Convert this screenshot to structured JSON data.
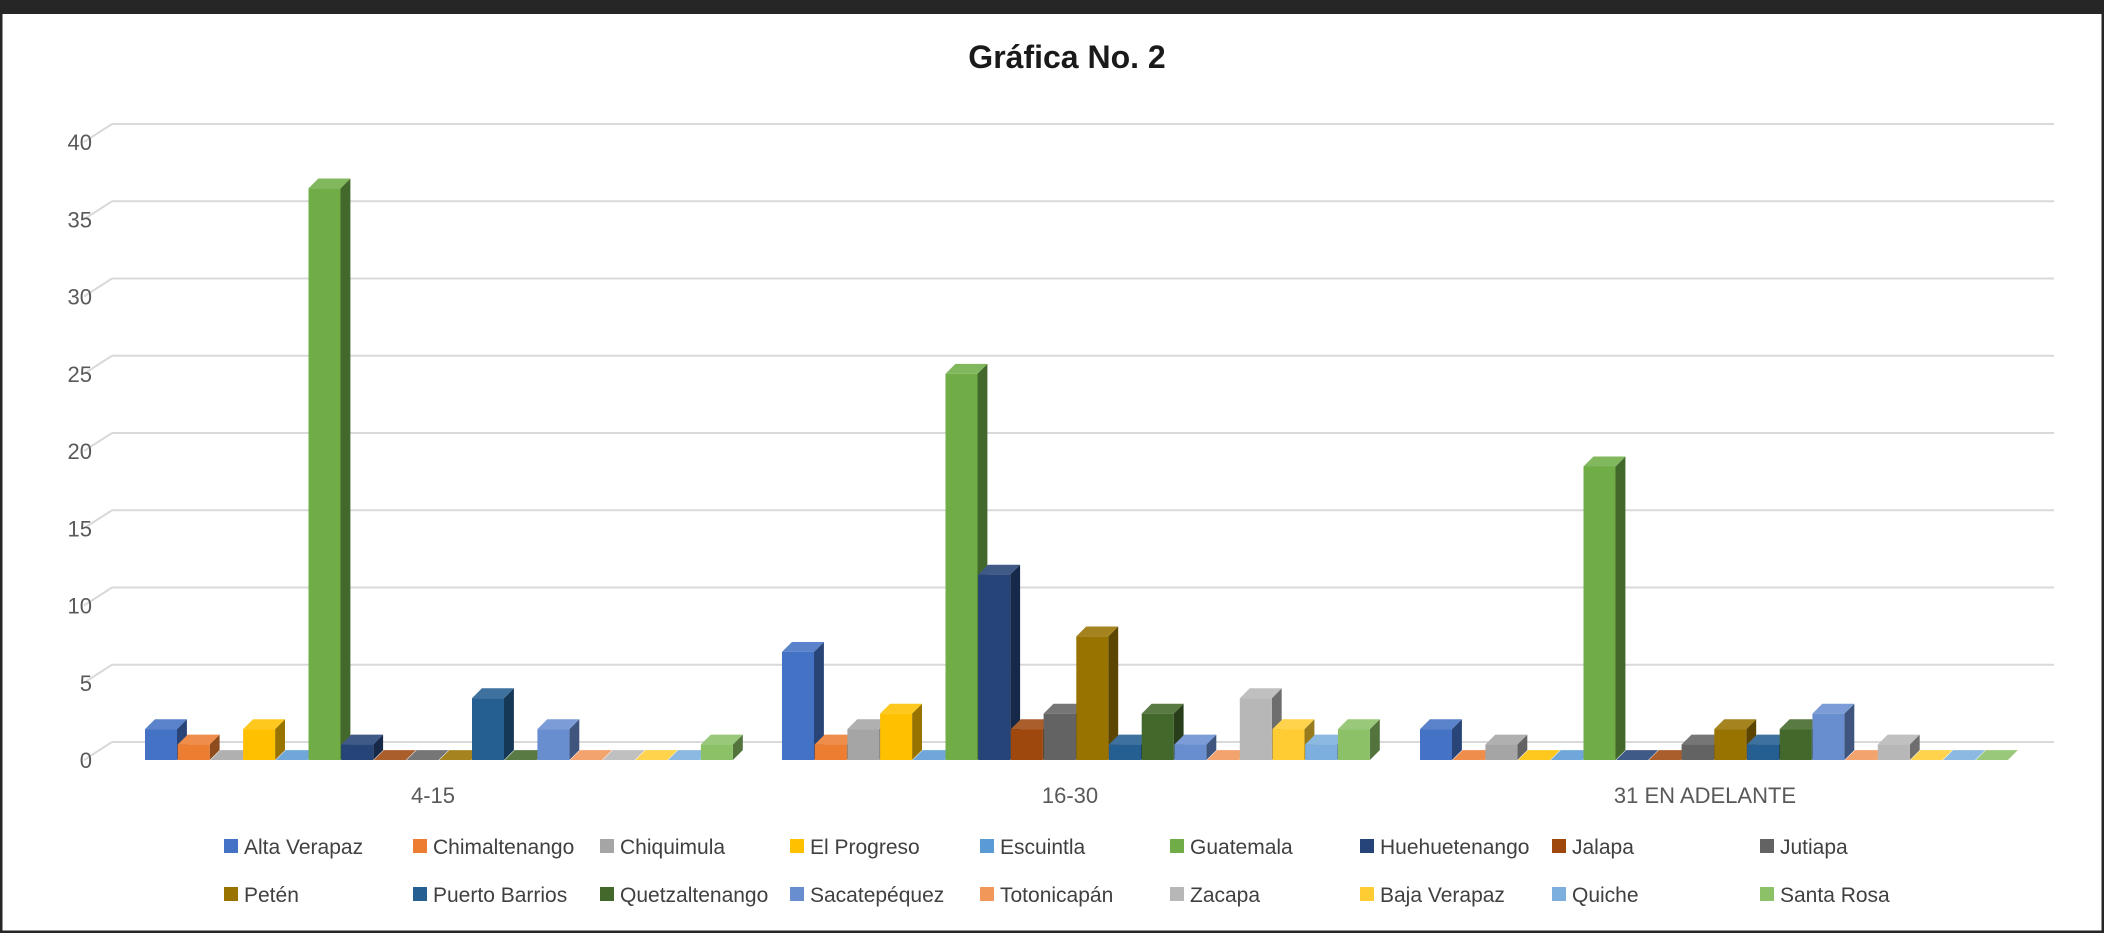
{
  "chart_data": {
    "type": "bar",
    "title": "Gráfica No. 2",
    "xlabel": "",
    "ylabel": "",
    "ylim": [
      0,
      40
    ],
    "yticks": [
      0,
      5,
      10,
      15,
      20,
      25,
      30,
      35,
      40
    ],
    "grid": true,
    "legend_position": "bottom",
    "categories": [
      "4-15",
      "16-30",
      "31 EN ADELANTE"
    ],
    "series": [
      {
        "name": "Alta Verapaz",
        "color": "#4472C4",
        "values": [
          2,
          7,
          2
        ]
      },
      {
        "name": "Chimaltenango",
        "color": "#ED7D31",
        "values": [
          1,
          1,
          0
        ]
      },
      {
        "name": "Chiquimula",
        "color": "#A5A5A5",
        "values": [
          0,
          2,
          1
        ]
      },
      {
        "name": "El Progreso",
        "color": "#FFC000",
        "values": [
          2,
          3,
          0
        ]
      },
      {
        "name": "Escuintla",
        "color": "#5B9BD5",
        "values": [
          0,
          0,
          0
        ]
      },
      {
        "name": "Guatemala",
        "color": "#70AD47",
        "values": [
          37,
          25,
          19
        ]
      },
      {
        "name": "Huehuetenango",
        "color": "#264478",
        "values": [
          1,
          12,
          0
        ]
      },
      {
        "name": "Jalapa",
        "color": "#9E480E",
        "values": [
          0,
          2,
          0
        ]
      },
      {
        "name": "Jutiapa",
        "color": "#636363",
        "values": [
          0,
          3,
          1
        ]
      },
      {
        "name": "Petén",
        "color": "#997300",
        "values": [
          0,
          8,
          2
        ]
      },
      {
        "name": "Puerto Barrios",
        "color": "#255E91",
        "values": [
          4,
          1,
          1
        ]
      },
      {
        "name": "Quetzaltenango",
        "color": "#43682B",
        "values": [
          0,
          3,
          2
        ]
      },
      {
        "name": "Sacatepéquez",
        "color": "#698ED0",
        "values": [
          2,
          1,
          3
        ]
      },
      {
        "name": "Totonicapán",
        "color": "#F1975A",
        "values": [
          0,
          0,
          0
        ]
      },
      {
        "name": "Zacapa",
        "color": "#B7B7B7",
        "values": [
          0,
          4,
          1
        ]
      },
      {
        "name": "Baja Verapaz",
        "color": "#FFCD33",
        "values": [
          0,
          2,
          0
        ]
      },
      {
        "name": "Quiche",
        "color": "#7CAFDD",
        "values": [
          0,
          1,
          0
        ]
      },
      {
        "name": "Santa Rosa",
        "color": "#8CC168",
        "values": [
          1,
          2,
          0
        ]
      }
    ]
  }
}
